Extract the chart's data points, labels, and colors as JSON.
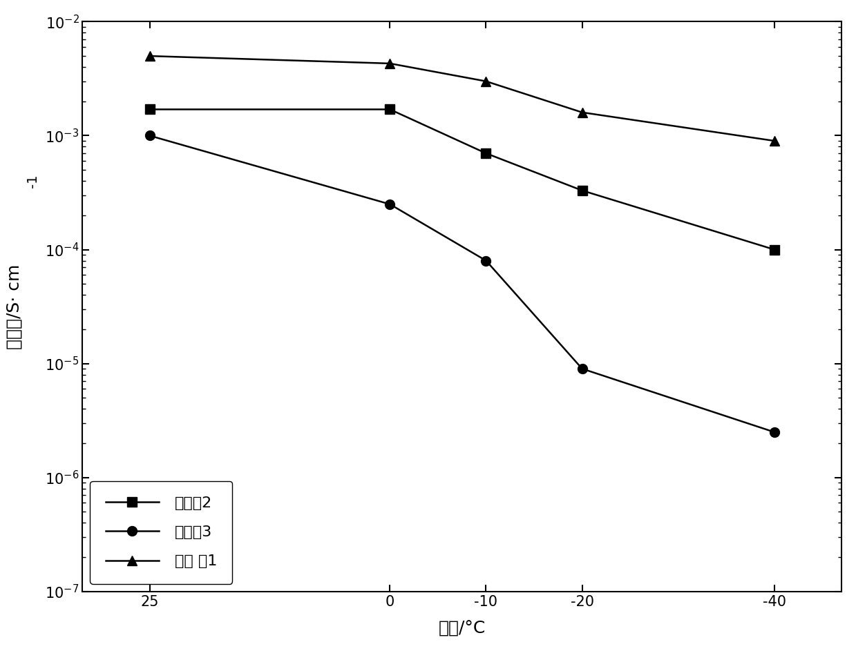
{
  "x_values": [
    25,
    0,
    -10,
    -20,
    -40
  ],
  "x_labels": [
    "25",
    "0",
    "-10",
    "-20",
    "-40"
  ],
  "series": [
    {
      "label": "对比例2",
      "marker": "s",
      "y_values": [
        0.0017,
        0.0017,
        0.0007,
        0.00033,
        0.0001
      ],
      "color": "#000000",
      "linestyle": "-"
    },
    {
      "label": "对比例3",
      "marker": "o",
      "y_values": [
        0.001,
        0.00025,
        8e-05,
        9e-06,
        2.5e-06
      ],
      "color": "#000000",
      "linestyle": "-"
    },
    {
      "label": "实施 例1",
      "marker": "^",
      "y_values": [
        0.005,
        0.0043,
        0.003,
        0.0016,
        0.0009
      ],
      "color": "#000000",
      "linestyle": "-"
    }
  ],
  "ylabel_parts": [
    "电导率/S· cm",
    "-1"
  ],
  "xlabel": "温度/°C",
  "ylim_min": 1e-07,
  "ylim_max": 0.01,
  "background_color": "#ffffff",
  "legend_loc": "lower left",
  "marker_size": 10,
  "linewidth": 1.8,
  "font_size": 16,
  "label_font_size": 18,
  "tick_font_size": 15
}
